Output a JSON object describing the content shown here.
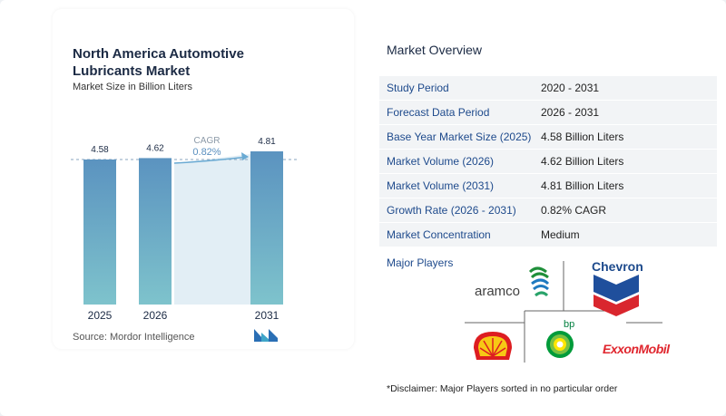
{
  "chart": {
    "title_line1": "North America Automotive",
    "title_line2": "Lubricants Market",
    "subtitle": "Market Size in Billion Liters",
    "source": "Source:  Mordor Intelligence",
    "cagr_label": "CAGR",
    "cagr_value": "0.82%"
  },
  "chart_data": {
    "type": "bar",
    "categories": [
      "2025",
      "2026",
      "",
      "",
      "2031"
    ],
    "values": [
      4.58,
      4.62,
      null,
      null,
      4.81
    ],
    "value_labels": [
      "4.58",
      "4.62",
      "",
      "",
      "4.81"
    ],
    "tick_labels": [
      "2025",
      "2026",
      "2031"
    ],
    "title": "North America Automotive Lubricants Market",
    "subtitle": "Market Size in Billion Liters",
    "annotation": "CAGR 0.82%",
    "colors": {
      "bar_top": "#5b93c0",
      "bar_bottom": "#7ec3cc",
      "cagr_arrow": "#6aaad3",
      "cagr_fill": "#dbe9f2"
    }
  },
  "overview": {
    "title": "Market Overview",
    "rows": [
      {
        "label": "Study Period",
        "value": "2020 - 2031"
      },
      {
        "label": "Forecast Data Period",
        "value": "2026 - 2031"
      },
      {
        "label": "Base Year Market Size (2025)",
        "value": "4.58 Billion Liters"
      },
      {
        "label": "Market Volume (2026)",
        "value": "4.62 Billion Liters"
      },
      {
        "label": "Market Volume (2031)",
        "value": "4.81 Billion Liters"
      },
      {
        "label": "Growth Rate (2026 - 2031)",
        "value": "0.82% CAGR"
      },
      {
        "label": "Market Concentration",
        "value": "Medium"
      }
    ]
  },
  "players": {
    "label": "Major Players",
    "logos": {
      "aramco": "aramco",
      "chevron": "Chevron",
      "bp": "bp",
      "exxon": "ExxonMobil"
    },
    "icons": [
      "aramco-logo",
      "chevron-logo",
      "shell-logo",
      "bp-logo",
      "exxonmobil-logo"
    ]
  },
  "disclaimer": "*Disclaimer: Major Players sorted in no particular order"
}
